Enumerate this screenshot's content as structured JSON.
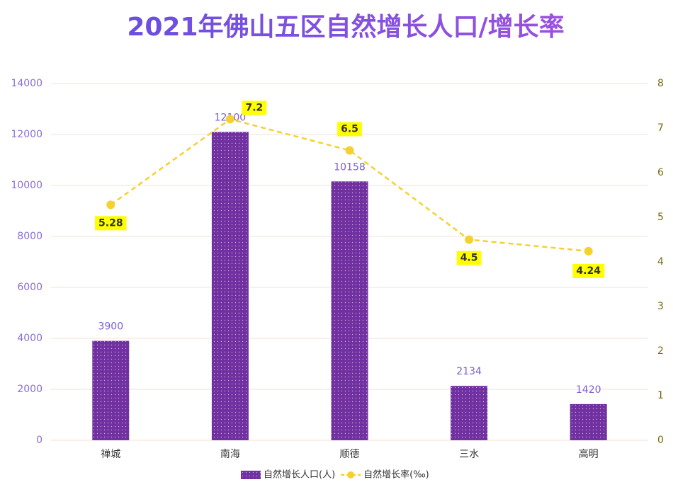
{
  "chart_data": {
    "type": "bar",
    "title": "2021年佛山五区自然增长人口/增长率",
    "categories": [
      "禅城",
      "南海",
      "顺德",
      "三水",
      "高明"
    ],
    "series": [
      {
        "name": "自然增长人口(人)",
        "type": "bar",
        "color": "#7030a0",
        "values": [
          3900,
          12100,
          10158,
          2134,
          1420
        ]
      },
      {
        "name": "自然增长率(‰)",
        "type": "line",
        "axis": "y2",
        "color": "#f5d130",
        "values": [
          5.28,
          7.2,
          6.5,
          4.5,
          4.24
        ]
      }
    ],
    "ylim": [
      0,
      14000
    ],
    "yticks": [
      0,
      2000,
      4000,
      6000,
      8000,
      10000,
      12000,
      14000
    ],
    "y2lim": [
      0,
      8
    ],
    "y2ticks": [
      0,
      1,
      2,
      3,
      4,
      5,
      6,
      7,
      8
    ],
    "grid": true,
    "legend": "bottom"
  }
}
